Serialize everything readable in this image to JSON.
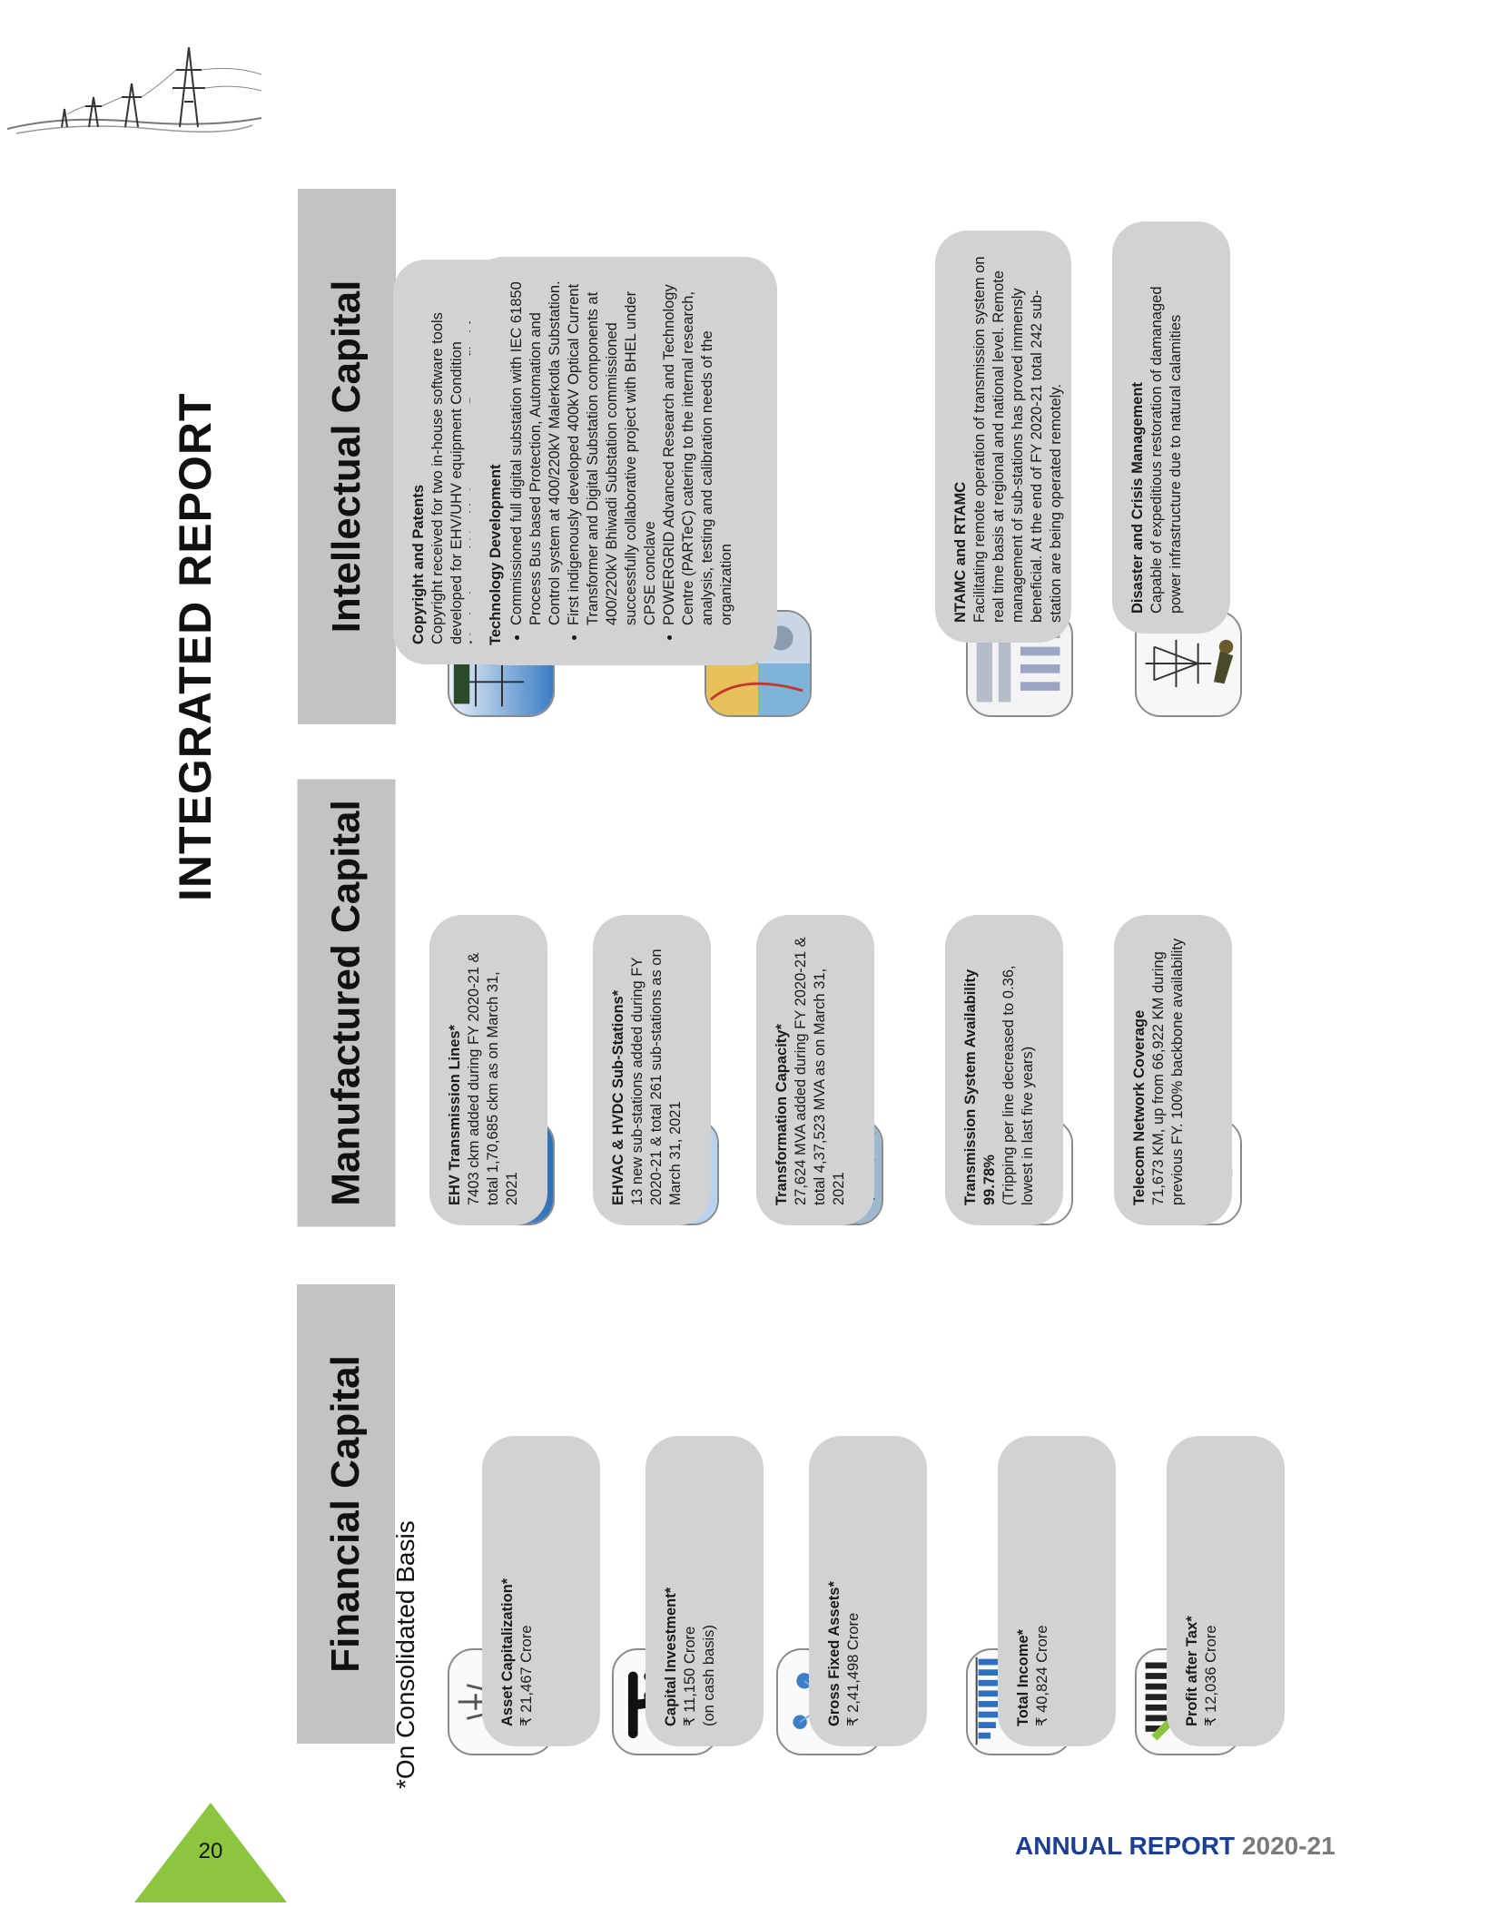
{
  "main_title": "INTEGRATED REPORT",
  "footnote": "*On Consolidated Basis",
  "footer": {
    "brand": "ANNUAL REPORT",
    "year": "2020-21"
  },
  "page_number": "20",
  "colors": {
    "accent_green": "#8cc63f",
    "footer_blue": "#1c3f94",
    "band_gray": "#c2c3c5",
    "card_gray": "#d1d2d4"
  },
  "financial": {
    "header": "Financial Capital",
    "items": [
      {
        "icon": "transmission-tower-icon",
        "title": "Asset Capitalization*",
        "lines": [
          "₹ 21,467 Crore"
        ]
      },
      {
        "icon": "rupee-icon",
        "title": "Capital Investment*",
        "lines": [
          "₹ 11,150 Crore",
          "(on cash basis)"
        ]
      },
      {
        "icon": "network-cubes-icon",
        "title": "Gross Fixed Assets*",
        "lines": [
          "₹ 2,41,498 Crore"
        ]
      },
      {
        "icon": "bar-chart-icon",
        "title": "Total Income*",
        "lines": [
          "₹ 40,824 Crore"
        ]
      },
      {
        "icon": "growth-chart-icon",
        "title": "Profit after Tax*",
        "lines": [
          "₹ 12,036 Crore"
        ]
      }
    ]
  },
  "manufactured": {
    "header": "Manufactured Capital",
    "items": [
      {
        "icon": "transmission-lines-photo-icon",
        "title": "EHV Transmission Lines*",
        "text": "7403 ckm added during FY 2020-21 & total 1,70,685 ckm as on March 31, 2021"
      },
      {
        "icon": "substation-photo-icon",
        "title": "EHVAC & HVDC Sub-Stations*",
        "text": "13 new sub-stations added during FY 2020-21 & total 261 sub-stations as on March 31, 2021"
      },
      {
        "icon": "transformer-photo-icon",
        "title": "Transformation Capacity*",
        "text": "27,624 MVA added during FY 2020-21 & total 4,37,523 MVA as on March 31, 2021"
      },
      {
        "icon": "availability-arrow-icon",
        "title": "Transmission System Availability 99.78%",
        "text": "(Tripping per line decreased to 0.36, lowest in last five years)"
      },
      {
        "icon": "powertel-logo-icon",
        "title": "Telecom Network Coverage",
        "text": "71,673 KM, up from 66,922 KM during previous FY. 100% backbone availability"
      }
    ]
  },
  "intellectual": {
    "header": "Intellectual Capital",
    "items": [
      {
        "icon": "substation-photo-icon",
        "title": "Copyright and Patents",
        "text": "Copyright received for two in-house software tools developed for EHV/UHV equipment Condition Monitoring and Health Assessment. Patent filed for one software tool \"System and method for health assessment of Transformers and Reactors\""
      },
      {
        "icon": "technology-collage-icon",
        "title": "Technology Development",
        "bullets": [
          "Commissioned full digital substation with IEC 61850 Process Bus based Protection, Automation and Control system at 400/220kV Malerkotla Substation.",
          "First indigenously developed 400kV Optical Current Transformer and Digital Substation components at 400/220kV Bhiwadi Substation commissioned successfully collaborative project with BHEL under CPSE conclave",
          "POWERGRID Advanced Research and Technology Centre (PARTeC) catering to the internal research, analysis, testing and calibration needs of the organization"
        ]
      },
      {
        "icon": "control-room-icon",
        "title": "NTAMC and RTAMC",
        "text": "Facilitating remote operation of transmission system on real time basis at regional and national level. Remote management of sub-stations has proved immensly beneficial. At the end of FY 2020-21 total 242 sub-station are being operated remotely."
      },
      {
        "icon": "tower-worker-icon",
        "title": "Disaster and Crisis Management",
        "text": "Capable of expeditious restoration of damanaged power infrastructure due to natural calamities"
      }
    ]
  }
}
